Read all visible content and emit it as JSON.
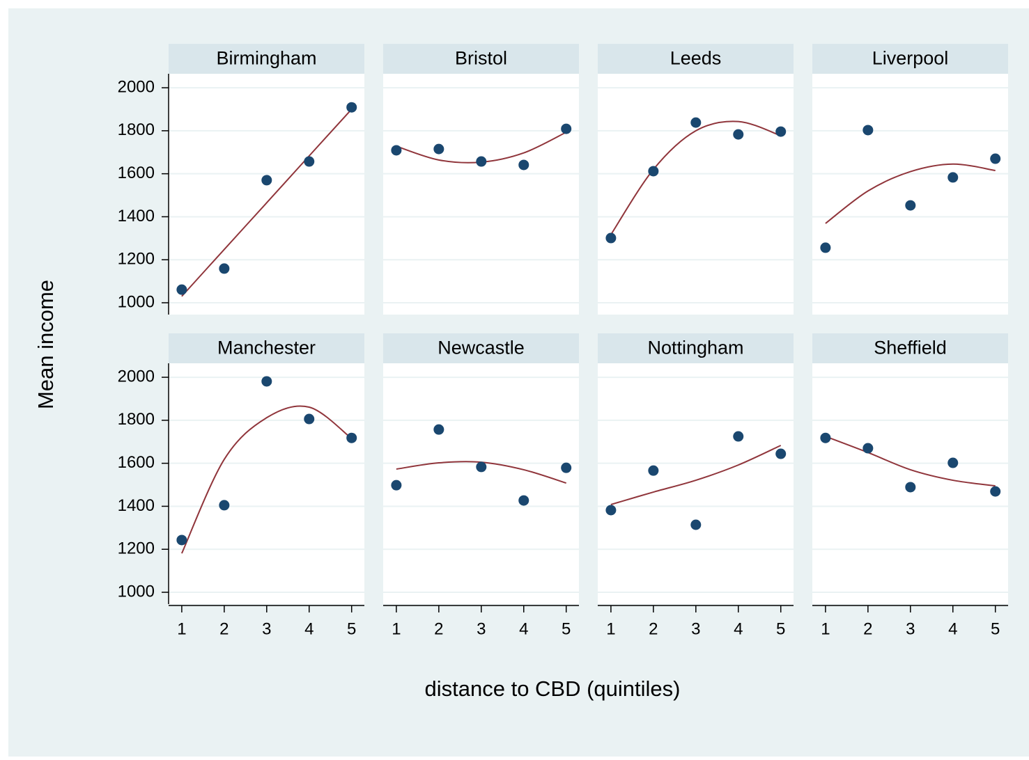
{
  "chart_data": [
    {
      "type": "scatter",
      "title": "Birmingham",
      "x": [
        1,
        2,
        3,
        4,
        5
      ],
      "values": [
        1061,
        1159,
        1570,
        1657,
        1909
      ],
      "fit": [
        1030,
        1248,
        1465,
        1683,
        1900
      ],
      "color": "#1a476f",
      "fit_color": "#90353b",
      "xlim": [
        0.69,
        5.3
      ],
      "ylim": [
        945,
        2065
      ],
      "yticks": [
        1000,
        1200,
        1400,
        1600,
        1800,
        2000
      ],
      "grid": true
    },
    {
      "type": "scatter",
      "title": "Bristol",
      "x": [
        1,
        2,
        3,
        4,
        5
      ],
      "values": [
        1709,
        1715,
        1657,
        1641,
        1809
      ],
      "fit": [
        1728,
        1664,
        1654,
        1697,
        1793
      ],
      "color": "#1a476f",
      "fit_color": "#90353b",
      "xlim": [
        0.69,
        5.3
      ],
      "ylim": [
        945,
        2065
      ],
      "yticks": [
        1000,
        1200,
        1400,
        1600,
        1800,
        2000
      ],
      "grid": true
    },
    {
      "type": "scatter",
      "title": "Leeds",
      "x": [
        1,
        2,
        3,
        4,
        5
      ],
      "values": [
        1301,
        1612,
        1838,
        1783,
        1796
      ],
      "fit": [
        1317,
        1620,
        1800,
        1843,
        1777
      ],
      "color": "#1a476f",
      "fit_color": "#90353b",
      "xlim": [
        0.69,
        5.3
      ],
      "ylim": [
        945,
        2065
      ],
      "yticks": [
        1000,
        1200,
        1400,
        1600,
        1800,
        2000
      ],
      "grid": true
    },
    {
      "type": "scatter",
      "title": "Liverpool",
      "x": [
        1,
        2,
        3,
        4,
        5
      ],
      "values": [
        1256,
        1803,
        1453,
        1583,
        1670
      ],
      "fit": [
        1369,
        1520,
        1610,
        1645,
        1615
      ],
      "color": "#1a476f",
      "fit_color": "#90353b",
      "xlim": [
        0.69,
        5.3
      ],
      "ylim": [
        945,
        2065
      ],
      "yticks": [
        1000,
        1200,
        1400,
        1600,
        1800,
        2000
      ],
      "grid": true
    },
    {
      "type": "scatter",
      "title": "Manchester",
      "x": [
        1,
        2,
        3,
        4,
        5
      ],
      "values": [
        1243,
        1405,
        1981,
        1806,
        1718
      ],
      "fit": [
        1181,
        1618,
        1812,
        1861,
        1715
      ],
      "color": "#1a476f",
      "fit_color": "#90353b",
      "xlim": [
        0.69,
        5.3
      ],
      "ylim": [
        945,
        2065
      ],
      "xticks": [
        1,
        2,
        3,
        4,
        5
      ],
      "yticks": [
        1000,
        1200,
        1400,
        1600,
        1800,
        2000
      ],
      "grid": true
    },
    {
      "type": "scatter",
      "title": "Newcastle",
      "x": [
        1,
        2,
        3,
        4,
        5
      ],
      "values": [
        1498,
        1757,
        1583,
        1427,
        1579
      ],
      "fit": [
        1573,
        1602,
        1605,
        1570,
        1508
      ],
      "color": "#1a476f",
      "fit_color": "#90353b",
      "xlim": [
        0.69,
        5.3
      ],
      "ylim": [
        945,
        2065
      ],
      "xticks": [
        1,
        2,
        3,
        4,
        5
      ],
      "yticks": [
        1000,
        1200,
        1400,
        1600,
        1800,
        2000
      ],
      "grid": true
    },
    {
      "type": "scatter",
      "title": "Nottingham",
      "x": [
        1,
        2,
        3,
        4,
        5
      ],
      "values": [
        1382,
        1566,
        1314,
        1725,
        1644
      ],
      "fit": [
        1408,
        1466,
        1521,
        1592,
        1683
      ],
      "color": "#1a476f",
      "fit_color": "#90353b",
      "xlim": [
        0.69,
        5.3
      ],
      "ylim": [
        945,
        2065
      ],
      "xticks": [
        1,
        2,
        3,
        4,
        5
      ],
      "yticks": [
        1000,
        1200,
        1400,
        1600,
        1800,
        2000
      ],
      "grid": true
    },
    {
      "type": "scatter",
      "title": "Sheffield",
      "x": [
        1,
        2,
        3,
        4,
        5
      ],
      "values": [
        1718,
        1670,
        1489,
        1602,
        1469
      ],
      "fit": [
        1725,
        1650,
        1570,
        1521,
        1495
      ],
      "color": "#1a476f",
      "fit_color": "#90353b",
      "xlim": [
        0.69,
        5.3
      ],
      "ylim": [
        945,
        2065
      ],
      "xticks": [
        1,
        2,
        3,
        4,
        5
      ],
      "yticks": [
        1000,
        1200,
        1400,
        1600,
        1800,
        2000
      ],
      "grid": true
    }
  ],
  "y_label": "Mean income",
  "x_label": "distance to CBD (quintiles)"
}
